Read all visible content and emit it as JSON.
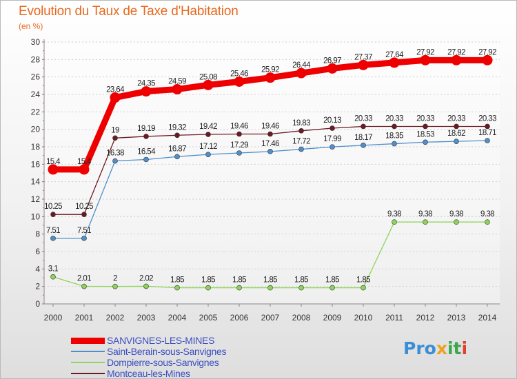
{
  "title": "Evolution du Taux de Taxe d'Habitation",
  "unit_label": "(en %)",
  "logo": {
    "text": "Proxiti",
    "parts": [
      "Pro",
      "x",
      "it",
      "i"
    ]
  },
  "chart_data": {
    "type": "line",
    "x": [
      2000,
      2001,
      2002,
      2003,
      2004,
      2005,
      2006,
      2007,
      2008,
      2009,
      2010,
      2011,
      2012,
      2013,
      2014
    ],
    "ylim": [
      0,
      30
    ],
    "yticks": [
      0,
      2,
      4,
      6,
      8,
      10,
      12,
      14,
      16,
      18,
      20,
      22,
      24,
      26,
      28,
      30
    ],
    "grid": "horizontal dotted",
    "legend_position": "bottom-left",
    "series": [
      {
        "name": "SANVIGNES-LES-MINES",
        "color": "#ee0000",
        "emphasis": true,
        "values": [
          15.4,
          15.4,
          23.64,
          24.35,
          24.59,
          25.08,
          25.46,
          25.92,
          26.44,
          26.97,
          27.37,
          27.64,
          27.92,
          27.92,
          27.92
        ],
        "labels": [
          "15.4",
          "15.4",
          "23.64",
          "24.35",
          "24.59",
          "25.08",
          "25.46",
          "25.92",
          "26.44",
          "26.97",
          "27.37",
          "27.64",
          "27.92",
          "27.92",
          "27.92"
        ]
      },
      {
        "name": "Saint-Berain-sous-Sanvignes",
        "color": "#4f8fca",
        "values": [
          7.51,
          7.51,
          16.38,
          16.54,
          16.87,
          17.12,
          17.29,
          17.46,
          17.72,
          17.99,
          18.17,
          18.35,
          18.53,
          18.62,
          18.71
        ],
        "labels": [
          "7.51",
          "7.51",
          "16.38",
          "16.54",
          "16.87",
          "17.12",
          "17.29",
          "17.46",
          "17.72",
          "17.99",
          "18.17",
          "18.35",
          "18.53",
          "18.62",
          "18.71"
        ]
      },
      {
        "name": "Dompierre-sous-Sanvignes",
        "color": "#8ed45a",
        "values": [
          3.1,
          2.01,
          2,
          2.02,
          1.85,
          1.85,
          1.85,
          1.85,
          1.85,
          1.85,
          1.85,
          9.38,
          9.38,
          9.38,
          9.38
        ],
        "labels": [
          "3.1",
          "2.01",
          "2",
          "2.02",
          "1.85",
          "1.85",
          "1.85",
          "1.85",
          "1.85",
          "1.85",
          "1.85",
          "9.38",
          "9.38",
          "9.38",
          "9.38"
        ]
      },
      {
        "name": "Montceau-les-Mines",
        "color": "#6b1a22",
        "values": [
          10.25,
          10.25,
          19,
          19.19,
          19.32,
          19.42,
          19.46,
          19.46,
          19.83,
          20.13,
          20.33,
          20.33,
          20.33,
          20.33,
          20.33
        ],
        "labels": [
          "10.25",
          "10.25",
          "19",
          "19.19",
          "19.32",
          "19.42",
          "19.46",
          "19.46",
          "19.83",
          "20.13",
          "20.33",
          "20.33",
          "20.33",
          "20.33",
          "20.33"
        ]
      }
    ]
  }
}
